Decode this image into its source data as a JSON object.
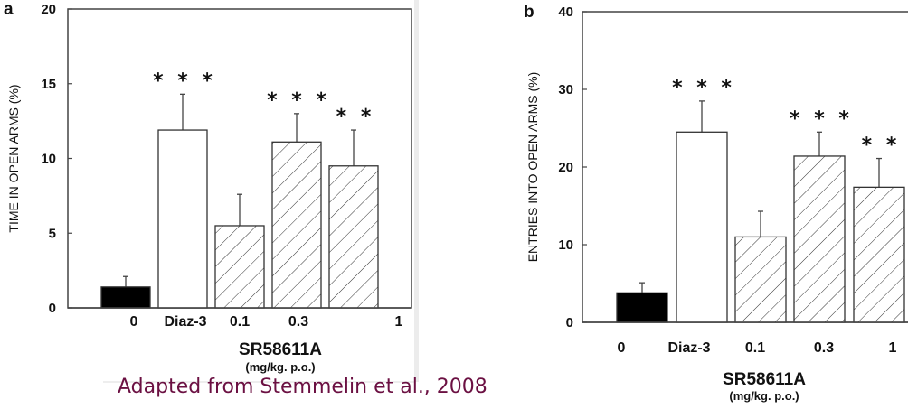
{
  "caption": "Adapted from Stemmelin et al., 2008",
  "colors": {
    "caption": "#6b1042",
    "bar_control": "#000000",
    "bar_diaz": "#ffffff",
    "hatch": "#333333"
  },
  "chart_data": [
    {
      "type": "bar",
      "panel": "a",
      "title": "",
      "ylabel": "TIME IN OPEN ARMS (%)",
      "xlabel": "SR58611A",
      "xlabel_unit": "(mg/kg. p.o.)",
      "ylim": [
        0,
        20
      ],
      "yticks": [
        0,
        5,
        10,
        15,
        20
      ],
      "categories": [
        "0",
        "Diaz-3",
        "0.1",
        "0.3",
        "1"
      ],
      "values": [
        1.4,
        11.9,
        5.5,
        11.1,
        9.5
      ],
      "errors_upper": [
        2.1,
        14.3,
        7.6,
        13.0,
        11.9
      ],
      "significance": [
        "",
        "***",
        "",
        "***",
        "**"
      ],
      "fills": [
        "solid-black",
        "white",
        "hatched",
        "hatched",
        "hatched"
      ],
      "grid": false
    },
    {
      "type": "bar",
      "panel": "b",
      "title": "",
      "ylabel": "ENTRIES INTO OPEN ARMS (%)",
      "xlabel": "SR58611A",
      "xlabel_unit": "(mg/kg. p.o.)",
      "ylim": [
        0,
        40
      ],
      "yticks": [
        0,
        10,
        20,
        30,
        40
      ],
      "categories": [
        "0",
        "Diaz-3",
        "0.1",
        "0.3",
        "1"
      ],
      "values": [
        3.8,
        24.5,
        11.0,
        21.4,
        17.4
      ],
      "errors_upper": [
        5.1,
        28.5,
        14.3,
        24.5,
        21.1
      ],
      "significance": [
        "",
        "***",
        "",
        "***",
        "**"
      ],
      "fills": [
        "solid-black",
        "white",
        "hatched",
        "hatched",
        "hatched"
      ],
      "grid": false
    }
  ]
}
